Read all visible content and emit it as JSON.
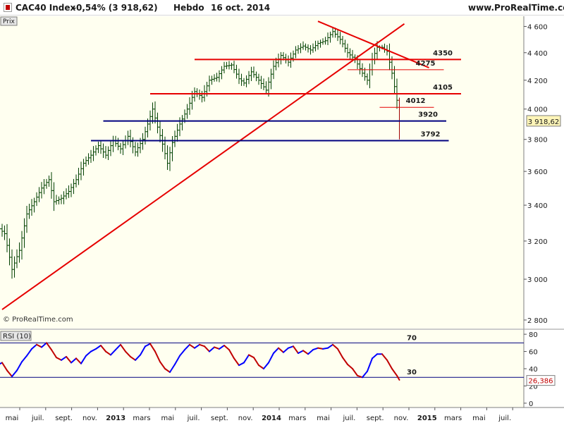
{
  "header": {
    "symbol": "CAC40 Index",
    "change": "-0,54% (3 918,62)",
    "period": "Hebdo",
    "date": "16 oct. 2014",
    "source": "www.ProRealTime.com"
  },
  "colors": {
    "plot_bg": "#fffff0",
    "bar": "#004000",
    "bar_last": "#a00000",
    "red_line": "#e60000",
    "blue_line": "#00007f",
    "rsi_blue": "#0000ff",
    "rsi_red": "#c00000",
    "price_tag": "#fdf5b8"
  },
  "chart_data": [
    {
      "type": "bar",
      "title": "CAC40 Index",
      "panel_label": "Prix",
      "watermark": "© ProRealTime.com",
      "yticks": [
        2800,
        3000,
        3200,
        3400,
        3600,
        3800,
        4000,
        4200,
        4400,
        4600
      ],
      "ytick_labels": [
        "2 800",
        "3 000",
        "3 200",
        "3 400",
        "3 600",
        "3 800",
        "4 000",
        "4 200",
        "4 400",
        "4 600"
      ],
      "ylim": [
        2760,
        4680
      ],
      "last_value": "3 918,62",
      "xaxis": {
        "labels": [
          "mai",
          "juil.",
          "sept.",
          "nov.",
          "2013",
          "mars",
          "mai",
          "juil.",
          "sept.",
          "nov.",
          "2014",
          "mars",
          "mai",
          "juil.",
          "sept.",
          "nov.",
          "2015",
          "mars",
          "mai",
          "juil."
        ],
        "bold": [
          "2013",
          "2014",
          "2015"
        ]
      },
      "series_path": [
        {
          "week": 0,
          "value": 3280
        },
        {
          "week": 3,
          "value": 3240
        },
        {
          "week": 6,
          "value": 3050
        },
        {
          "week": 9,
          "value": 3150
        },
        {
          "week": 12,
          "value": 3350
        },
        {
          "week": 15,
          "value": 3420
        },
        {
          "week": 18,
          "value": 3500
        },
        {
          "week": 21,
          "value": 3550
        },
        {
          "week": 23,
          "value": 3420
        },
        {
          "week": 26,
          "value": 3440
        },
        {
          "week": 29,
          "value": 3480
        },
        {
          "week": 32,
          "value": 3550
        },
        {
          "week": 35,
          "value": 3650
        },
        {
          "week": 38,
          "value": 3700
        },
        {
          "week": 41,
          "value": 3760
        },
        {
          "week": 44,
          "value": 3700
        },
        {
          "week": 47,
          "value": 3790
        },
        {
          "week": 50,
          "value": 3740
        },
        {
          "week": 53,
          "value": 3820
        },
        {
          "week": 56,
          "value": 3720
        },
        {
          "week": 59,
          "value": 3800
        },
        {
          "week": 61,
          "value": 3900
        },
        {
          "week": 63,
          "value": 4000
        },
        {
          "week": 65,
          "value": 3880
        },
        {
          "week": 67,
          "value": 3770
        },
        {
          "week": 69,
          "value": 3650
        },
        {
          "week": 71,
          "value": 3780
        },
        {
          "week": 74,
          "value": 3900
        },
        {
          "week": 77,
          "value": 4000
        },
        {
          "week": 80,
          "value": 4120
        },
        {
          "week": 83,
          "value": 4080
        },
        {
          "week": 86,
          "value": 4200
        },
        {
          "week": 89,
          "value": 4220
        },
        {
          "week": 92,
          "value": 4300
        },
        {
          "week": 95,
          "value": 4310
        },
        {
          "week": 98,
          "value": 4210
        },
        {
          "week": 100,
          "value": 4180
        },
        {
          "week": 103,
          "value": 4260
        },
        {
          "week": 106,
          "value": 4200
        },
        {
          "week": 109,
          "value": 4130
        },
        {
          "week": 112,
          "value": 4300
        },
        {
          "week": 115,
          "value": 4380
        },
        {
          "week": 118,
          "value": 4330
        },
        {
          "week": 121,
          "value": 4420
        },
        {
          "week": 124,
          "value": 4450
        },
        {
          "week": 127,
          "value": 4420
        },
        {
          "week": 130,
          "value": 4470
        },
        {
          "week": 133,
          "value": 4490
        },
        {
          "week": 136,
          "value": 4560
        },
        {
          "week": 139,
          "value": 4500
        },
        {
          "week": 142,
          "value": 4400
        },
        {
          "week": 145,
          "value": 4350
        },
        {
          "week": 148,
          "value": 4250
        },
        {
          "week": 150,
          "value": 4200
        },
        {
          "week": 152,
          "value": 4350
        },
        {
          "week": 154,
          "value": 4440
        },
        {
          "week": 156,
          "value": 4440
        },
        {
          "week": 158,
          "value": 4410
        },
        {
          "week": 160,
          "value": 4250
        },
        {
          "week": 162,
          "value": 4060
        },
        {
          "week": 163,
          "value": 3920
        }
      ],
      "levels": [
        {
          "label": "4350",
          "value": 4350,
          "color": "red",
          "width": 2,
          "x_start": 80,
          "x_end": 188
        },
        {
          "label": "4275",
          "value": 4275,
          "color": "red",
          "width": 1,
          "x_start": 142,
          "x_end": 181
        },
        {
          "label": "4105",
          "value": 4105,
          "color": "red",
          "width": 2,
          "x_start": 62,
          "x_end": 188
        },
        {
          "label": "4012",
          "value": 4012,
          "color": "red",
          "width": 1,
          "x_start": 155,
          "x_end": 177
        },
        {
          "label": "3920",
          "value": 3920,
          "color": "blue",
          "width": 2,
          "x_start": 43,
          "x_end": 182
        },
        {
          "label": "3792",
          "value": 3792,
          "color": "blue",
          "width": 2,
          "x_start": 38,
          "x_end": 183
        }
      ],
      "trendlines": [
        {
          "from": {
            "week": 2,
            "value": 2850
          },
          "to": {
            "week": 165,
            "value": 4620
          }
        },
        {
          "from": {
            "week": 130,
            "value": 4640
          },
          "to": {
            "week": 175,
            "value": 4290
          }
        }
      ]
    },
    {
      "type": "line",
      "title": "RSI (10)",
      "yticks": [
        0,
        20,
        40,
        60,
        80
      ],
      "ylim": [
        -5,
        85
      ],
      "levels": [
        {
          "label": "70",
          "value": 70
        },
        {
          "label": "30",
          "value": 30
        }
      ],
      "last_value": "26,386",
      "rsi_path": [
        {
          "week": 0,
          "value": 44
        },
        {
          "week": 2,
          "value": 47
        },
        {
          "week": 4,
          "value": 38
        },
        {
          "week": 6,
          "value": 31
        },
        {
          "week": 8,
          "value": 38
        },
        {
          "week": 10,
          "value": 48
        },
        {
          "week": 12,
          "value": 55
        },
        {
          "week": 14,
          "value": 63
        },
        {
          "week": 16,
          "value": 68
        },
        {
          "week": 18,
          "value": 65
        },
        {
          "week": 20,
          "value": 70
        },
        {
          "week": 22,
          "value": 62
        },
        {
          "week": 24,
          "value": 53
        },
        {
          "week": 26,
          "value": 50
        },
        {
          "week": 28,
          "value": 54
        },
        {
          "week": 30,
          "value": 47
        },
        {
          "week": 32,
          "value": 52
        },
        {
          "week": 34,
          "value": 46
        },
        {
          "week": 36,
          "value": 55
        },
        {
          "week": 38,
          "value": 60
        },
        {
          "week": 40,
          "value": 63
        },
        {
          "week": 42,
          "value": 67
        },
        {
          "week": 44,
          "value": 60
        },
        {
          "week": 46,
          "value": 56
        },
        {
          "week": 48,
          "value": 62
        },
        {
          "week": 50,
          "value": 68
        },
        {
          "week": 52,
          "value": 60
        },
        {
          "week": 54,
          "value": 54
        },
        {
          "week": 56,
          "value": 50
        },
        {
          "week": 58,
          "value": 56
        },
        {
          "week": 60,
          "value": 66
        },
        {
          "week": 62,
          "value": 69
        },
        {
          "week": 64,
          "value": 60
        },
        {
          "week": 66,
          "value": 48
        },
        {
          "week": 68,
          "value": 40
        },
        {
          "week": 70,
          "value": 36
        },
        {
          "week": 72,
          "value": 45
        },
        {
          "week": 74,
          "value": 55
        },
        {
          "week": 76,
          "value": 62
        },
        {
          "week": 78,
          "value": 68
        },
        {
          "week": 80,
          "value": 64
        },
        {
          "week": 82,
          "value": 68
        },
        {
          "week": 84,
          "value": 66
        },
        {
          "week": 86,
          "value": 60
        },
        {
          "week": 88,
          "value": 65
        },
        {
          "week": 90,
          "value": 63
        },
        {
          "week": 92,
          "value": 67
        },
        {
          "week": 94,
          "value": 62
        },
        {
          "week": 96,
          "value": 52
        },
        {
          "week": 98,
          "value": 44
        },
        {
          "week": 100,
          "value": 47
        },
        {
          "week": 102,
          "value": 56
        },
        {
          "week": 104,
          "value": 53
        },
        {
          "week": 106,
          "value": 44
        },
        {
          "week": 108,
          "value": 40
        },
        {
          "week": 110,
          "value": 47
        },
        {
          "week": 112,
          "value": 58
        },
        {
          "week": 114,
          "value": 64
        },
        {
          "week": 116,
          "value": 59
        },
        {
          "week": 118,
          "value": 64
        },
        {
          "week": 120,
          "value": 66
        },
        {
          "week": 122,
          "value": 58
        },
        {
          "week": 124,
          "value": 61
        },
        {
          "week": 126,
          "value": 57
        },
        {
          "week": 128,
          "value": 62
        },
        {
          "week": 130,
          "value": 64
        },
        {
          "week": 132,
          "value": 63
        },
        {
          "week": 134,
          "value": 64
        },
        {
          "week": 136,
          "value": 68
        },
        {
          "week": 138,
          "value": 63
        },
        {
          "week": 140,
          "value": 53
        },
        {
          "week": 142,
          "value": 45
        },
        {
          "week": 144,
          "value": 40
        },
        {
          "week": 146,
          "value": 32
        },
        {
          "week": 148,
          "value": 30
        },
        {
          "week": 150,
          "value": 37
        },
        {
          "week": 152,
          "value": 52
        },
        {
          "week": 154,
          "value": 57
        },
        {
          "week": 156,
          "value": 57
        },
        {
          "week": 158,
          "value": 50
        },
        {
          "week": 160,
          "value": 40
        },
        {
          "week": 162,
          "value": 32
        },
        {
          "week": 163,
          "value": 27
        }
      ]
    }
  ]
}
